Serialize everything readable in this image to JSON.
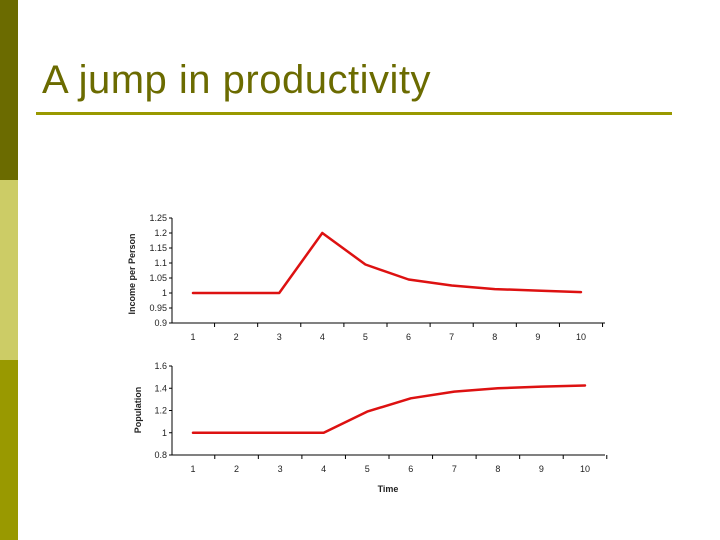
{
  "slide": {
    "title": "A jump in productivity",
    "colors": {
      "sidebar_top": "#6b6b00",
      "sidebar_mid": "#cccc66",
      "sidebar_bottom": "#999900",
      "title": "#6b6b00",
      "rule": "#999900",
      "line": "#dd1111"
    }
  },
  "chart_data": [
    {
      "type": "line",
      "ylabel": "Income per Person",
      "xlabel": "",
      "x": [
        1,
        2,
        3,
        4,
        5,
        6,
        7,
        8,
        9,
        10
      ],
      "xticks": [
        "1",
        "2",
        "3",
        "4",
        "5",
        "6",
        "7",
        "8",
        "9",
        "10"
      ],
      "yticks": [
        "0.9",
        "0.95",
        "1",
        "1.05",
        "1.1",
        "1.15",
        "1.2",
        "1.25"
      ],
      "ylim": [
        0.9,
        1.25
      ],
      "series": [
        {
          "values": [
            1.0,
            1.0,
            1.0,
            1.2,
            1.095,
            1.045,
            1.025,
            1.013,
            1.008,
            1.003
          ]
        }
      ],
      "grid": false,
      "legend": "none"
    },
    {
      "type": "line",
      "ylabel": "Population",
      "xlabel": "Time",
      "x": [
        1,
        2,
        3,
        4,
        5,
        6,
        7,
        8,
        9,
        10
      ],
      "xticks": [
        "1",
        "2",
        "3",
        "4",
        "5",
        "6",
        "7",
        "8",
        "9",
        "10"
      ],
      "yticks": [
        "0.8",
        "1",
        "1.2",
        "1.4",
        "1.6"
      ],
      "ylim": [
        0.8,
        1.6
      ],
      "series": [
        {
          "values": [
            1.0,
            1.0,
            1.0,
            1.0,
            1.19,
            1.31,
            1.37,
            1.4,
            1.415,
            1.425
          ]
        }
      ],
      "grid": false,
      "legend": "none"
    }
  ]
}
